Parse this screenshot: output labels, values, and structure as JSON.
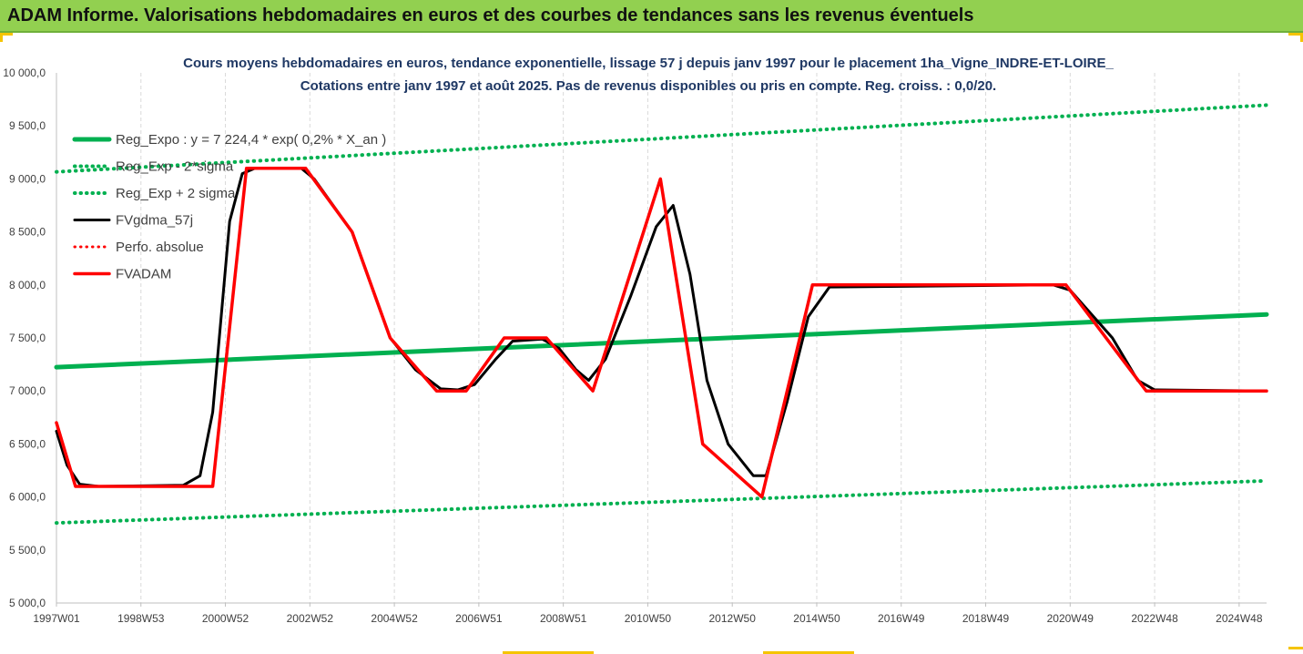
{
  "header": {
    "title": "ADAM Informe. Valorisations hebdomadaires en euros et des courbes de tendances sans les revenus éventuels"
  },
  "colors": {
    "header_bg": "#92d050",
    "reg_expo": "#00b050",
    "fv_gdma": "#000000",
    "fv_adam": "#ff0000",
    "perfo": "#ff0000"
  },
  "chart_data": {
    "type": "line",
    "title": [
      "Cours moyens hebdomadaires en euros, tendance exponentielle, lissage 57 j depuis janv 1997 pour le placement 1ha_Vigne_INDRE-ET-LOIRE_",
      "Cotations entre janv 1997 et août 2025.  Pas de revenus disponibles ou pris en compte. Reg. croiss. : 0,0/20."
    ],
    "xlabel": "",
    "ylabel": "",
    "ylim": [
      5000,
      10000
    ],
    "xlim": [
      1997.0,
      2025.65
    ],
    "y_ticks": [
      5000,
      5500,
      6000,
      6500,
      7000,
      7500,
      8000,
      8500,
      9000,
      9500,
      10000
    ],
    "y_tick_labels": [
      "5 000,0",
      "5 500,0",
      "6 000,0",
      "6 500,0",
      "7 000,0",
      "7 500,0",
      "8 000,0",
      "8 500,0",
      "9 000,0",
      "9 500,0",
      "10 000,0"
    ],
    "x_ticks": [
      1997.0,
      1999.0,
      2001.0,
      2003.0,
      2005.0,
      2007.0,
      2009.0,
      2011.0,
      2013.0,
      2015.0,
      2017.0,
      2019.0,
      2021.0,
      2023.0,
      2025.0
    ],
    "x_tick_labels": [
      "1997W01",
      "1998W53",
      "2000W52",
      "2002W52",
      "2004W52",
      "2006W51",
      "2008W51",
      "2010W50",
      "2012W50",
      "2014W50",
      "2016W49",
      "2018W49",
      "2020W49",
      "2022W48",
      "2024W48"
    ],
    "grid": "vertical",
    "legend": {
      "placement": "top-left",
      "entries": [
        "Reg_Expo : y = 7 224,4 * exp( 0,2% *  X_an )",
        "Reg_Exp - 2*sigma",
        "Reg_Exp + 2 sigma",
        "FVgdma_57j",
        "Perfo. absolue",
        "FVADAM"
      ]
    },
    "series": [
      {
        "name": "Reg_Expo : y = 7 224,4 * exp( 0,2% *  X_an )",
        "style": "solid",
        "color": "#00b050",
        "x": [
          1997.0,
          2025.65
        ],
        "y": [
          7224,
          7722
        ]
      },
      {
        "name": "Reg_Exp - 2*sigma",
        "style": "dotted",
        "color": "#00b050",
        "x": [
          1997.0,
          2025.65
        ],
        "y": [
          5755,
          6152
        ]
      },
      {
        "name": "Reg_Exp + 2 sigma",
        "style": "dotted",
        "color": "#00b050",
        "x": [
          1997.0,
          2025.65
        ],
        "y": [
          9066,
          9696
        ]
      },
      {
        "name": "FVADAM",
        "style": "solid",
        "color": "#ff0000",
        "x": [
          1997.0,
          1997.45,
          2000.7,
          2001.5,
          2002.9,
          2004.0,
          2004.9,
          2006.0,
          2006.7,
          2007.6,
          2008.6,
          2009.7,
          2011.3,
          2012.3,
          2013.7,
          2014.9,
          2020.9,
          2022.8,
          2025.65
        ],
        "y": [
          6700,
          6100,
          6100,
          9100,
          9100,
          8500,
          7500,
          7000,
          7000,
          7500,
          7500,
          7000,
          9000,
          6500,
          6000,
          8000,
          8000,
          7000,
          7000
        ]
      },
      {
        "name": "FVgdma_57j",
        "style": "solid",
        "color": "#000000",
        "x": [
          1997.0,
          1997.25,
          1997.55,
          1998.0,
          2000.0,
          2000.4,
          2000.7,
          2001.1,
          2001.4,
          2001.7,
          2002.8,
          2003.1,
          2004.0,
          2004.9,
          2005.5,
          2006.1,
          2006.5,
          2006.9,
          2007.4,
          2007.8,
          2008.5,
          2008.9,
          2009.3,
          2009.6,
          2010.0,
          2010.6,
          2011.2,
          2011.6,
          2012.0,
          2012.4,
          2012.9,
          2013.5,
          2013.8,
          2014.3,
          2014.8,
          2015.3,
          2020.6,
          2021.0,
          2022.0,
          2022.6,
          2023.0,
          2025.65
        ],
        "y": [
          6620,
          6300,
          6120,
          6100,
          6110,
          6200,
          6800,
          8600,
          9050,
          9100,
          9100,
          9000,
          8500,
          7500,
          7200,
          7020,
          7010,
          7060,
          7300,
          7470,
          7490,
          7400,
          7200,
          7100,
          7300,
          7900,
          8550,
          8750,
          8100,
          7100,
          6500,
          6200,
          6200,
          6900,
          7700,
          7980,
          8000,
          7950,
          7500,
          7100,
          7010,
          7000
        ]
      },
      {
        "name": "Perfo. absolue",
        "style": "dotted",
        "color": "#ff0000",
        "x": [],
        "y": []
      }
    ]
  }
}
